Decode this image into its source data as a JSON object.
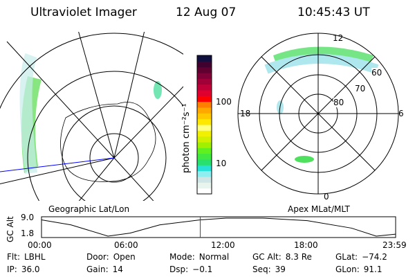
{
  "header": {
    "instrument": "Ultraviolet Imager",
    "date": "12 Aug 07",
    "time": "10:45:43 UT"
  },
  "colorbar": {
    "label": "photon cm⁻²s⁻¹",
    "ticks": [
      "100",
      "10"
    ],
    "colors": [
      "#ffffff",
      "#e8f4ee",
      "#d0e6e6",
      "#8eeef0",
      "#28e0d8",
      "#28e070",
      "#40e840",
      "#60f020",
      "#a0f000",
      "#d0f000",
      "#f0f000",
      "#ffff80",
      "#ffe800",
      "#ffc800",
      "#ffa800",
      "#ff8000",
      "#ff0000",
      "#e00030",
      "#c00038",
      "#a00038",
      "#800038",
      "#600030",
      "#400030",
      "#101040"
    ]
  },
  "left_map": {
    "label": "Geographic Lat/Lon"
  },
  "right_map": {
    "label": "Apex MLat/MLT",
    "lat_labels": [
      "60",
      "70",
      "80"
    ],
    "mlt_labels": [
      "12",
      "18",
      "6",
      "0"
    ]
  },
  "timeline": {
    "ylabel": "GC Alt",
    "yticks": [
      "9.0",
      "1.8"
    ],
    "xticks": [
      "00:00",
      "06:00",
      "12:00",
      "18:00",
      "23:59"
    ],
    "marker_time": "10:45",
    "marker_color": "#ff0000"
  },
  "chart_data": {
    "type": "line",
    "ylabel": "GC Alt",
    "ylim": [
      1.8,
      9.0
    ],
    "x": [
      "00:00",
      "02:00",
      "04:30",
      "06:00",
      "08:00",
      "10:45",
      "12:30",
      "15:00",
      "18:00",
      "21:00",
      "22:40",
      "23:59"
    ],
    "values": [
      8.3,
      6.3,
      1.8,
      3.0,
      6.3,
      8.3,
      9.0,
      9.0,
      8.0,
      5.0,
      1.8,
      2.6
    ]
  },
  "status": {
    "row1": [
      {
        "k": "Flt:",
        "v": "LBHL"
      },
      {
        "k": "Door:",
        "v": "Open"
      },
      {
        "k": "Mode:",
        "v": "Normal"
      },
      {
        "k": "GC Alt:",
        "v": "8.3 Re"
      },
      {
        "k": "GLat:",
        "v": "−74.2"
      }
    ],
    "row2": [
      {
        "k": "IP:",
        "v": "36.0"
      },
      {
        "k": "Gain:",
        "v": "14"
      },
      {
        "k": "Dsp:",
        "v": "−0.1"
      },
      {
        "k": "Seq:",
        "v": "39"
      },
      {
        "k": "GLon:",
        "v": "91.1"
      }
    ]
  }
}
